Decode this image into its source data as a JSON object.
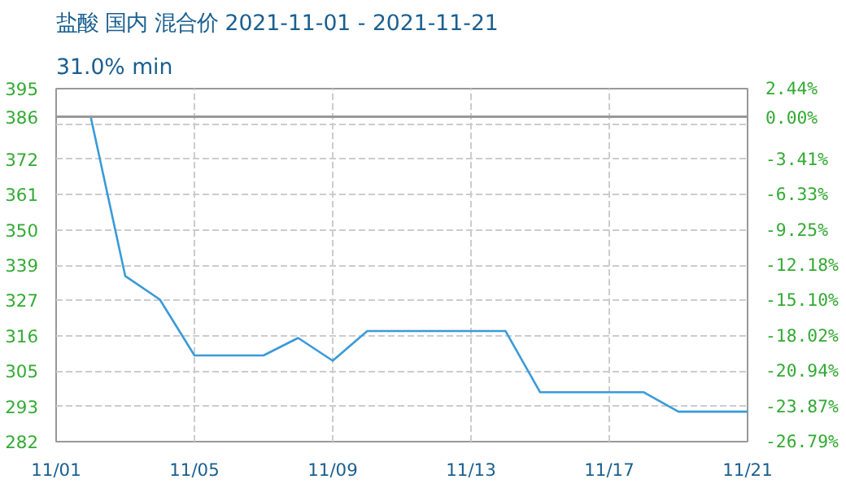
{
  "chart_data": {
    "type": "line",
    "title": "盐酸 国内 混合价 2021-11-01 - 2021-11-21",
    "subtitle": "31.0% min",
    "x": [
      "2021-11-01",
      "2021-11-02",
      "2021-11-03",
      "2021-11-04",
      "2021-11-05",
      "2021-11-06",
      "2021-11-07",
      "2021-11-08",
      "2021-11-09",
      "2021-11-10",
      "2021-11-11",
      "2021-11-12",
      "2021-11-13",
      "2021-11-14",
      "2021-11-15",
      "2021-11-16",
      "2021-11-17",
      "2021-11-18",
      "2021-11-19",
      "2021-11-20",
      "2021-11-21"
    ],
    "series": [
      {
        "color": "#3a9ad9",
        "values": [
          386,
          386,
          335,
          327.5,
          309.6,
          309.6,
          309.6,
          315.2,
          307.9,
          317.4,
          317.4,
          317.4,
          317.4,
          317.4,
          297.8,
          297.8,
          297.8,
          297.8,
          291.6,
          291.6,
          291.6
        ]
      }
    ],
    "xlim": [
      "2021-11-01",
      "2021-11-21"
    ],
    "xticks": [
      {
        "value": "2021-11-01",
        "label": "11/01"
      },
      {
        "value": "2021-11-05",
        "label": "11/05"
      },
      {
        "value": "2021-11-09",
        "label": "11/09"
      },
      {
        "value": "2021-11-13",
        "label": "11/13"
      },
      {
        "value": "2021-11-17",
        "label": "11/17"
      },
      {
        "value": "2021-11-21",
        "label": "11/21"
      }
    ],
    "ylim": [
      282,
      395
    ],
    "yticks": [
      395,
      386,
      {
        "value": 383.7,
        "label": null
      },
      {
        "value": 372.4,
        "label": "372"
      },
      {
        "value": 361.1,
        "label": "361"
      },
      {
        "value": 349.8,
        "label": "350"
      },
      {
        "value": 338.5,
        "label": "339"
      },
      {
        "value": 327.2,
        "label": "327"
      },
      {
        "value": 315.9,
        "label": "316"
      },
      {
        "value": 304.6,
        "label": "305"
      },
      {
        "value": 293.3,
        "label": "293"
      },
      282
    ],
    "y2lim": [
      -26.79,
      2.44
    ],
    "y2ticks": [
      {
        "value": 2.44,
        "label": "2.44%"
      },
      {
        "value": 0,
        "label": "0.00%"
      },
      {
        "value": -3.41,
        "label": "-3.41%"
      },
      {
        "value": -6.33,
        "label": "-6.33%"
      },
      {
        "value": -9.25,
        "label": "-9.25%"
      },
      {
        "value": -12.18,
        "label": "-12.18%"
      },
      {
        "value": -15.1,
        "label": "-15.10%"
      },
      {
        "value": -18.02,
        "label": "-18.02%"
      },
      {
        "value": -20.94,
        "label": "-20.94%"
      },
      {
        "value": -23.87,
        "label": "-23.87%"
      },
      {
        "value": -26.79,
        "label": "-26.79%"
      }
    ],
    "ref_lines": [
      {
        "axis": "y",
        "value": 386,
        "color": "#999999",
        "line_style": "solid"
      }
    ],
    "grid": true,
    "marker": "none",
    "line_style": "solid"
  }
}
